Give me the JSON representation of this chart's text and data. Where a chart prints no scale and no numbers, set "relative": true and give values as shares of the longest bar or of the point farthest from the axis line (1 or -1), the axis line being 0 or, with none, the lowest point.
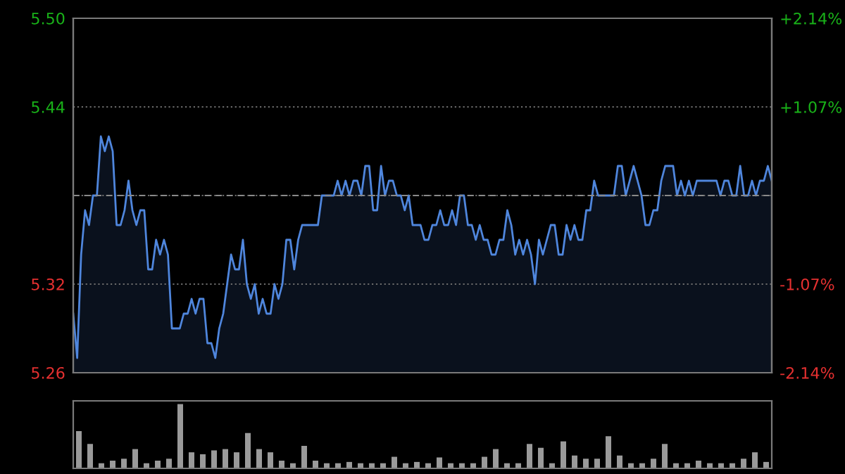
{
  "chart_data": [
    {
      "type": "area",
      "categories": [
        null,
        null,
        null,
        null,
        null,
        null,
        null,
        null,
        null,
        null,
        null,
        null,
        null,
        null,
        null,
        null,
        null,
        null,
        null,
        null,
        null,
        null,
        null,
        null,
        null,
        null,
        null,
        null,
        null,
        null,
        null,
        null,
        null,
        null,
        null,
        null,
        null,
        null,
        null,
        null,
        null,
        null,
        null,
        null,
        null,
        null,
        null,
        null,
        null,
        null,
        null,
        null,
        null,
        null,
        null,
        null,
        null,
        null,
        null,
        null,
        null,
        null,
        null,
        null,
        null,
        null,
        null,
        null,
        null,
        null,
        null,
        null,
        null,
        null,
        null,
        null,
        null,
        null,
        null,
        null,
        null,
        null,
        null,
        null,
        null,
        null,
        null,
        null,
        null,
        null,
        null,
        null,
        null,
        null,
        null,
        null,
        null,
        null,
        null,
        null,
        null,
        null,
        null,
        null,
        null,
        null,
        null,
        null,
        null,
        null,
        null,
        null,
        null,
        null,
        null,
        null,
        null,
        null,
        null,
        null,
        null,
        null,
        null,
        null,
        null,
        null,
        null,
        null,
        null,
        null,
        null,
        null,
        null,
        null,
        null,
        null,
        null,
        null,
        null,
        null,
        null,
        null,
        null,
        null,
        null,
        null,
        null,
        null,
        null,
        null,
        null,
        null,
        null,
        null,
        null,
        null,
        null,
        null,
        null,
        null,
        null,
        null,
        null,
        null,
        null,
        null,
        null,
        null,
        null,
        null,
        null,
        null,
        null,
        null,
        null,
        null,
        null,
        null
      ],
      "ylim": [
        5.26,
        5.5
      ],
      "yticks": [
        5.26,
        5.32,
        {
          "value": 5.38,
          "label": null
        },
        5.44,
        {
          "value": 5.5,
          "label": "5.50"
        }
      ],
      "y2lim": [
        -2.14,
        2.14
      ],
      "y2ticks": [
        {
          "value": -2.14,
          "label": "-2.14%"
        },
        {
          "value": -1.07,
          "label": "-1.07%"
        },
        {
          "value": 1.07,
          "label": "+1.07%"
        },
        {
          "value": 2.14,
          "label": "+2.14%"
        }
      ],
      "ref_lines": [
        {
          "axis": "y",
          "value": 5.38,
          "color": "#8a8a8a",
          "line_style": "dashed"
        }
      ],
      "grid": "y",
      "tick_labels": "y",
      "series": [
        {
          "color": "#4f86dd",
          "values": [
            5.3,
            5.27,
            5.34,
            5.37,
            5.36,
            5.38,
            5.38,
            5.42,
            5.41,
            5.42,
            5.41,
            5.36,
            5.36,
            5.37,
            5.39,
            5.37,
            5.36,
            5.37,
            5.37,
            5.33,
            5.33,
            5.35,
            5.34,
            5.35,
            5.34,
            5.29,
            5.29,
            5.29,
            5.3,
            5.3,
            5.31,
            5.3,
            5.31,
            5.31,
            5.28,
            5.28,
            5.27,
            5.29,
            5.3,
            5.32,
            5.34,
            5.33,
            5.33,
            5.35,
            5.32,
            5.31,
            5.32,
            5.3,
            5.31,
            5.3,
            5.3,
            5.32,
            5.31,
            5.32,
            5.35,
            5.35,
            5.33,
            5.35,
            5.36,
            5.36,
            5.36,
            5.36,
            5.36,
            5.38,
            5.38,
            5.38,
            5.38,
            5.39,
            5.38,
            5.39,
            5.38,
            5.39,
            5.39,
            5.38,
            5.4,
            5.4,
            5.37,
            5.37,
            5.4,
            5.38,
            5.39,
            5.39,
            5.38,
            5.38,
            5.37,
            5.38,
            5.36,
            5.36,
            5.36,
            5.35,
            5.35,
            5.36,
            5.36,
            5.37,
            5.36,
            5.36,
            5.37,
            5.36,
            5.38,
            5.38,
            5.36,
            5.36,
            5.35,
            5.36,
            5.35,
            5.35,
            5.34,
            5.34,
            5.35,
            5.35,
            5.37,
            5.36,
            5.34,
            5.35,
            5.34,
            5.35,
            5.34,
            5.32,
            5.35,
            5.34,
            5.35,
            5.36,
            5.36,
            5.34,
            5.34,
            5.36,
            5.35,
            5.36,
            5.35,
            5.35,
            5.37,
            5.37,
            5.39,
            5.38,
            5.38,
            5.38,
            5.38,
            5.38,
            5.4,
            5.4,
            5.38,
            5.39,
            5.4,
            5.39,
            5.38,
            5.36,
            5.36,
            5.37,
            5.37,
            5.39,
            5.4,
            5.4,
            5.4,
            5.38,
            5.39,
            5.38,
            5.39,
            5.38,
            5.39,
            5.39,
            5.39,
            5.39,
            5.39,
            5.39,
            5.38,
            5.39,
            5.39,
            5.38,
            5.38,
            5.4,
            5.38,
            5.38,
            5.39,
            5.38,
            5.39,
            5.39,
            5.4,
            5.39
          ]
        }
      ]
    },
    {
      "type": "bar",
      "relative": true,
      "tick_labels": false,
      "categories": [
        null,
        null,
        null,
        null,
        null,
        null,
        null,
        null,
        null,
        null,
        null,
        null,
        null,
        null,
        null,
        null,
        null,
        null,
        null,
        null,
        null,
        null,
        null,
        null,
        null,
        null,
        null,
        null,
        null,
        null,
        null,
        null,
        null,
        null,
        null,
        null,
        null,
        null,
        null,
        null,
        null,
        null,
        null,
        null,
        null,
        null,
        null,
        null,
        null,
        null,
        null,
        null,
        null,
        null,
        null,
        null,
        null,
        null,
        null,
        null,
        null,
        null
      ],
      "series": [
        {
          "color": "#9a9a9a",
          "values": [
            0.58,
            0.38,
            0.08,
            0.12,
            0.15,
            0.3,
            0.08,
            0.12,
            0.15,
            1.0,
            0.25,
            0.22,
            0.28,
            0.3,
            0.25,
            0.55,
            0.3,
            0.25,
            0.12,
            0.08,
            0.35,
            0.12,
            0.08,
            0.08,
            0.1,
            0.08,
            0.08,
            0.08,
            0.18,
            0.08,
            0.1,
            0.08,
            0.17,
            0.08,
            0.08,
            0.08,
            0.18,
            0.3,
            0.08,
            0.08,
            0.38,
            0.32,
            0.08,
            0.42,
            0.2,
            0.15,
            0.15,
            0.5,
            0.2,
            0.08,
            0.08,
            0.15,
            0.38,
            0.08,
            0.08,
            0.12,
            0.08,
            0.08,
            0.08,
            0.15,
            0.25,
            0.1
          ]
        }
      ]
    }
  ]
}
